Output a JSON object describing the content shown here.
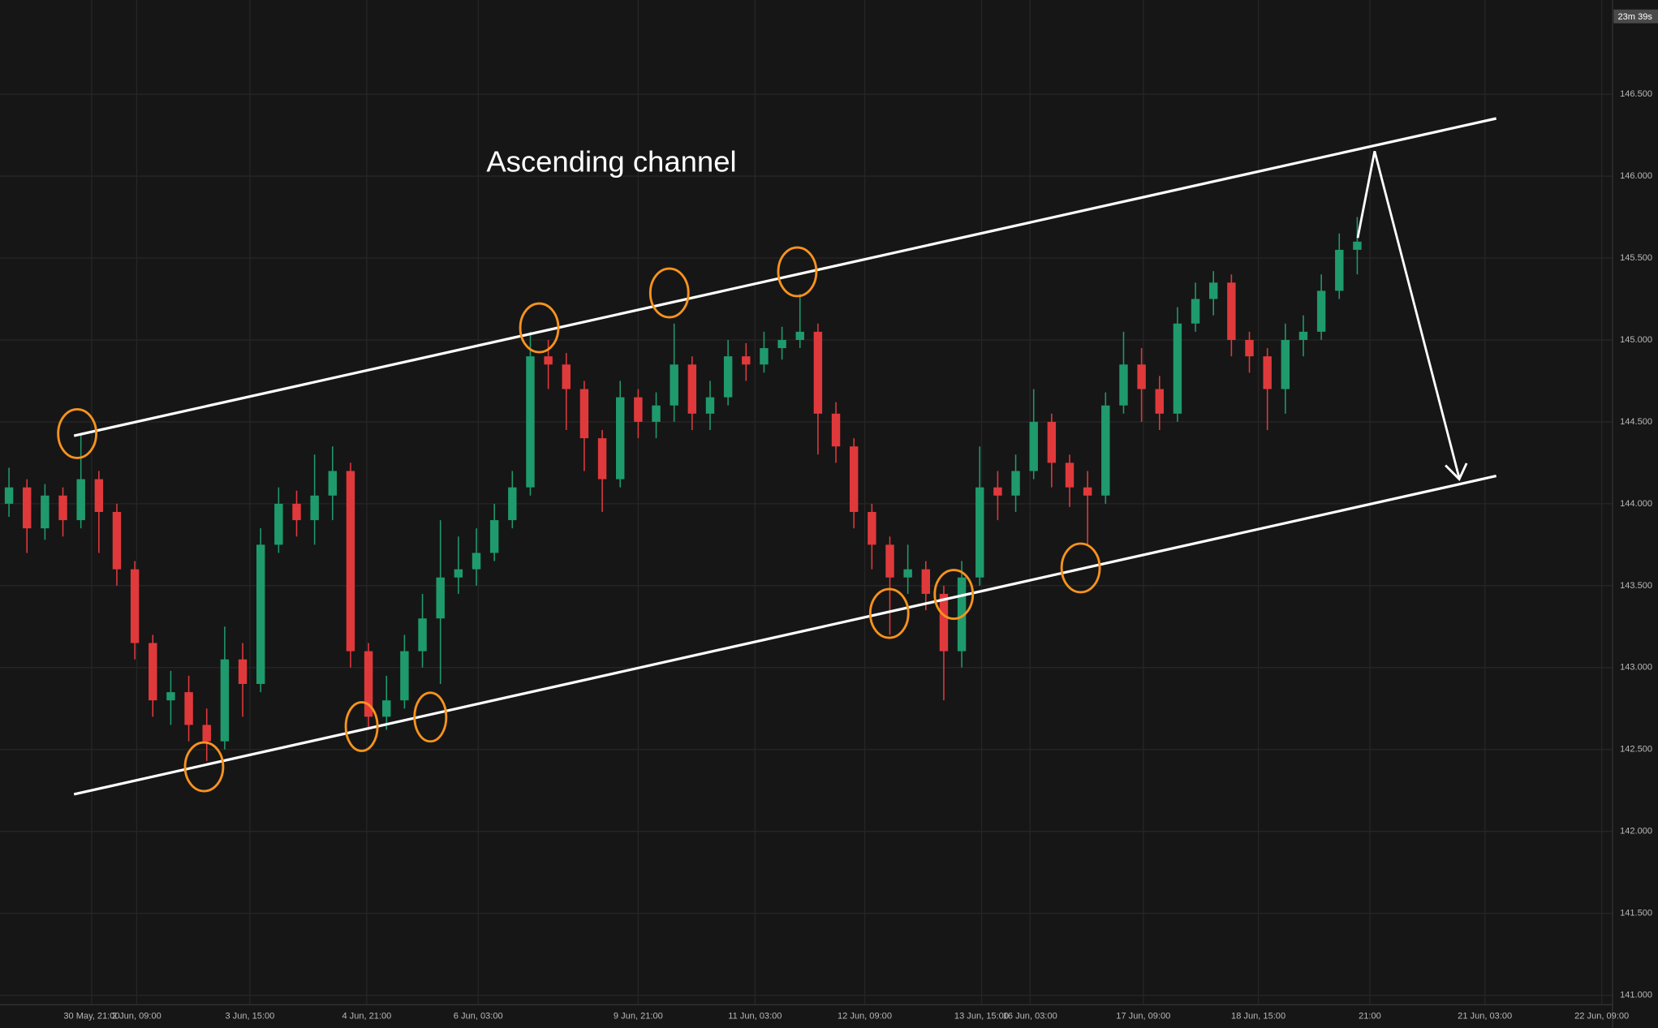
{
  "chart_data": {
    "type": "candlestick",
    "title": "Ascending channel",
    "countdown": "23m 39s",
    "up_color": "#1f9a6c",
    "down_color": "#e0393c",
    "grid": true,
    "open": [
      144.0,
      144.1,
      143.85,
      144.05,
      143.9,
      144.15,
      143.95,
      143.6,
      143.15,
      142.8,
      142.85,
      142.65,
      142.55,
      143.05,
      142.9,
      143.75,
      144.0,
      143.9,
      144.05,
      144.2,
      143.1,
      142.7,
      142.8,
      143.1,
      143.3,
      143.55,
      143.6,
      143.7,
      143.9,
      144.1,
      144.9,
      144.85,
      144.7,
      144.4,
      144.15,
      144.65,
      144.5,
      144.6,
      144.85,
      144.55,
      144.65,
      144.9,
      144.85,
      144.95,
      145.0,
      145.05,
      144.55,
      144.35,
      143.95,
      143.75,
      143.55,
      143.6,
      143.45,
      143.1,
      143.55,
      144.1,
      144.05,
      144.2,
      144.5,
      144.25,
      144.1,
      144.05,
      144.6,
      144.85,
      144.7,
      144.55,
      145.1,
      145.25,
      145.35,
      145.0,
      144.9,
      144.7,
      145.0,
      145.05,
      145.3,
      145.55
    ],
    "high": [
      144.22,
      144.15,
      144.12,
      144.1,
      144.43,
      144.2,
      144.0,
      143.65,
      143.2,
      142.98,
      142.95,
      142.75,
      143.25,
      143.15,
      143.85,
      144.1,
      144.08,
      144.3,
      144.35,
      144.25,
      143.15,
      142.95,
      143.2,
      143.45,
      143.9,
      143.8,
      143.85,
      144.0,
      144.2,
      145.05,
      145.0,
      144.92,
      144.75,
      144.45,
      144.75,
      144.7,
      144.68,
      145.1,
      144.9,
      144.75,
      145.0,
      144.98,
      145.05,
      145.08,
      145.28,
      145.1,
      144.62,
      144.4,
      144.0,
      143.8,
      143.75,
      143.65,
      143.5,
      143.65,
      144.35,
      144.2,
      144.3,
      144.7,
      144.55,
      144.3,
      144.2,
      144.68,
      145.05,
      144.95,
      144.78,
      145.2,
      145.35,
      145.42,
      145.4,
      145.05,
      144.95,
      145.1,
      145.15,
      145.4,
      145.65,
      145.75
    ],
    "low": [
      143.92,
      143.7,
      143.78,
      143.8,
      143.85,
      143.7,
      143.5,
      143.05,
      142.7,
      142.65,
      142.55,
      142.43,
      142.5,
      142.7,
      142.85,
      143.7,
      143.8,
      143.75,
      143.9,
      143.0,
      142.62,
      142.62,
      142.75,
      143.0,
      142.9,
      143.45,
      143.5,
      143.65,
      143.85,
      144.05,
      144.7,
      144.45,
      144.2,
      143.95,
      144.1,
      144.4,
      144.4,
      144.5,
      144.45,
      144.45,
      144.6,
      144.75,
      144.8,
      144.88,
      144.95,
      144.3,
      144.25,
      143.85,
      143.6,
      143.2,
      143.45,
      143.35,
      142.8,
      143.0,
      143.5,
      143.9,
      143.95,
      144.15,
      144.1,
      143.98,
      143.75,
      144.0,
      144.55,
      144.5,
      144.45,
      144.5,
      145.05,
      145.15,
      144.9,
      144.8,
      144.45,
      144.55,
      144.9,
      145.0,
      145.25,
      145.4
    ],
    "close": [
      144.1,
      143.85,
      144.05,
      143.9,
      144.15,
      143.95,
      143.6,
      143.15,
      142.8,
      142.85,
      142.65,
      142.55,
      143.05,
      142.9,
      143.75,
      144.0,
      143.9,
      144.05,
      144.2,
      143.1,
      142.7,
      142.8,
      143.1,
      143.3,
      143.55,
      143.6,
      143.7,
      143.9,
      144.1,
      144.9,
      144.85,
      144.7,
      144.4,
      144.15,
      144.65,
      144.5,
      144.6,
      144.85,
      144.55,
      144.65,
      144.9,
      144.85,
      144.95,
      145.0,
      145.05,
      144.55,
      144.35,
      143.95,
      143.75,
      143.55,
      143.6,
      143.45,
      143.1,
      143.55,
      144.1,
      144.05,
      144.2,
      144.5,
      144.25,
      144.1,
      144.05,
      144.6,
      144.85,
      144.7,
      144.55,
      145.1,
      145.25,
      145.35,
      145.0,
      144.9,
      144.7,
      145.0,
      145.05,
      145.3,
      145.55,
      145.6
    ],
    "ylim": [
      140.942,
      147.075
    ],
    "yticks": [
      {
        "value": 141,
        "label": "141.000"
      },
      {
        "value": 141.5,
        "label": "141.500"
      },
      {
        "value": 142,
        "label": "142.000"
      },
      {
        "value": 142.5,
        "label": "142.500"
      },
      {
        "value": 143,
        "label": "143.000"
      },
      {
        "value": 143.5,
        "label": "143.500"
      },
      {
        "value": 144,
        "label": "144.000"
      },
      {
        "value": 144.5,
        "label": "144.500"
      },
      {
        "value": 145,
        "label": "145.000"
      },
      {
        "value": 145.5,
        "label": "145.500"
      },
      {
        "value": 146,
        "label": "146.000"
      },
      {
        "value": 146.5,
        "label": "146.500"
      }
    ],
    "xlim": [
      0,
      89.7
    ],
    "xticks": [
      {
        "value": 5.1,
        "label": "30 May, 21:00"
      },
      {
        "value": 7.6,
        "label": "2 Jun, 09:00"
      },
      {
        "value": 13.9,
        "label": "3 Jun, 15:00"
      },
      {
        "value": 20.4,
        "label": "4 Jun, 21:00"
      },
      {
        "value": 26.6,
        "label": "6 Jun, 03:00"
      },
      {
        "value": 35.5,
        "label": "9 Jun, 21:00"
      },
      {
        "value": 42.0,
        "label": "11 Jun, 03:00"
      },
      {
        "value": 48.1,
        "label": "12 Jun, 09:00"
      },
      {
        "value": 54.6,
        "label": "13 Jun, 15:00"
      },
      {
        "value": 57.3,
        "label": "16 Jun, 03:00"
      },
      {
        "value": 63.6,
        "label": "17 Jun, 09:00"
      },
      {
        "value": 70.0,
        "label": "18 Jun, 15:00"
      },
      {
        "value": 76.2,
        "label": "21:00"
      },
      {
        "value": 82.6,
        "label": "21 Jun, 03:00"
      },
      {
        "value": 89.1,
        "label": "22 Jun, 09:00"
      }
    ]
  }
}
